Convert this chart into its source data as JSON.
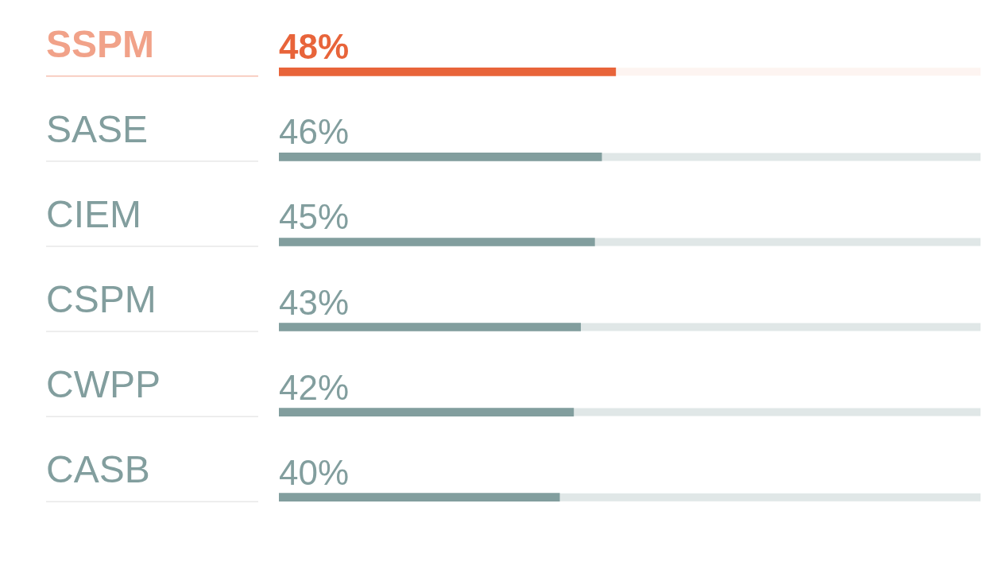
{
  "chart_data": {
    "type": "bar",
    "orientation": "horizontal",
    "categories": [
      "SSPM",
      "SASE",
      "CIEM",
      "CSPM",
      "CWPP",
      "CASB"
    ],
    "values": [
      48,
      46,
      45,
      43,
      42,
      40
    ],
    "value_labels": [
      "48%",
      "46%",
      "45%",
      "43%",
      "42%",
      "40%"
    ],
    "colors": [
      "#e8643a",
      "#829e9e",
      "#829e9e",
      "#829e9e",
      "#829e9e",
      "#829e9e"
    ],
    "xlim": [
      0,
      100
    ],
    "tick_labels": "y",
    "legend": false
  }
}
